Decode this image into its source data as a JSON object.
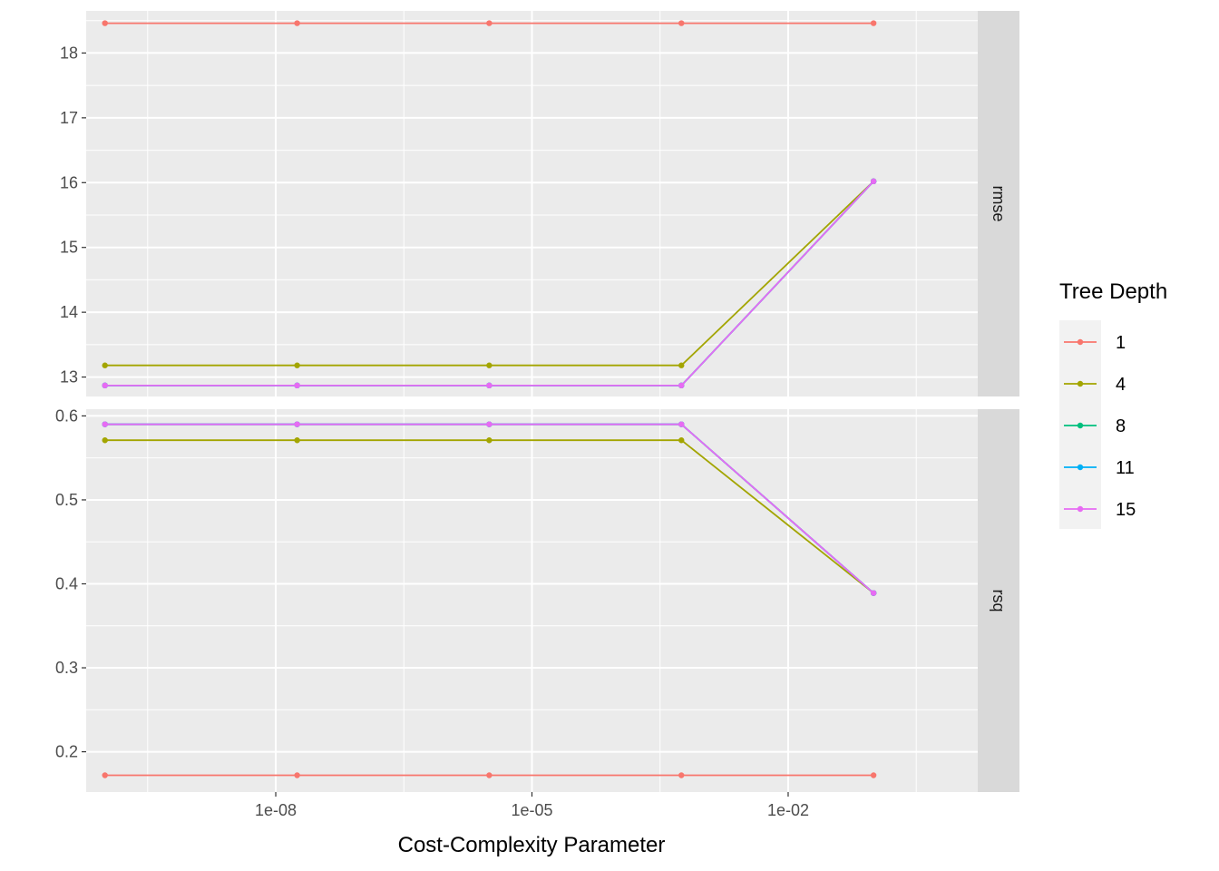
{
  "chart_data": {
    "type": "line",
    "xlabel": "Cost-Complexity Parameter",
    "x_scale": "log10",
    "x": [
      1e-10,
      1.78e-08,
      3.16e-06,
      0.000562,
      0.1
    ],
    "x_ticks": [
      {
        "value": 1e-08,
        "label": "1e-08"
      },
      {
        "value": 1e-05,
        "label": "1e-05"
      },
      {
        "value": 0.01,
        "label": "1e-02"
      }
    ],
    "xlim_log10": [
      -10.22,
      0.22
    ],
    "legend": {
      "title": "Tree Depth",
      "placement": "right",
      "entries": [
        "1",
        "4",
        "8",
        "11",
        "15"
      ]
    },
    "colors": {
      "1": "#F8766D",
      "4": "#A3A500",
      "8": "#00BF7D",
      "11": "#00B0F6",
      "15": "#E76BF3"
    },
    "panels": [
      {
        "strip": "rmse",
        "ylim": [
          12.7,
          18.65
        ],
        "y_ticks": [
          13,
          14,
          15,
          16,
          17,
          18
        ],
        "series": [
          {
            "name": "1",
            "values": [
              18.46,
              18.46,
              18.46,
              18.46,
              18.46
            ]
          },
          {
            "name": "4",
            "values": [
              13.18,
              13.18,
              13.18,
              13.18,
              16.02
            ]
          },
          {
            "name": "8",
            "values": [
              12.87,
              12.87,
              12.87,
              12.87,
              16.02
            ]
          },
          {
            "name": "11",
            "values": [
              12.87,
              12.87,
              12.87,
              12.87,
              16.02
            ]
          },
          {
            "name": "15",
            "values": [
              12.87,
              12.87,
              12.87,
              12.87,
              16.02
            ]
          }
        ]
      },
      {
        "strip": "rsq",
        "ylim": [
          0.152,
          0.608
        ],
        "y_ticks": [
          0.2,
          0.3,
          0.4,
          0.5,
          0.6
        ],
        "y_tick_labels": [
          "0.2",
          "0.3",
          "0.4",
          "0.5",
          "0.6"
        ],
        "series": [
          {
            "name": "1",
            "values": [
              0.172,
              0.172,
              0.172,
              0.172,
              0.172
            ]
          },
          {
            "name": "4",
            "values": [
              0.571,
              0.571,
              0.571,
              0.571,
              0.389
            ]
          },
          {
            "name": "8",
            "values": [
              0.59,
              0.59,
              0.59,
              0.59,
              0.389
            ]
          },
          {
            "name": "11",
            "values": [
              0.59,
              0.59,
              0.59,
              0.59,
              0.389
            ]
          },
          {
            "name": "15",
            "values": [
              0.59,
              0.59,
              0.59,
              0.59,
              0.389
            ]
          }
        ]
      }
    ]
  }
}
